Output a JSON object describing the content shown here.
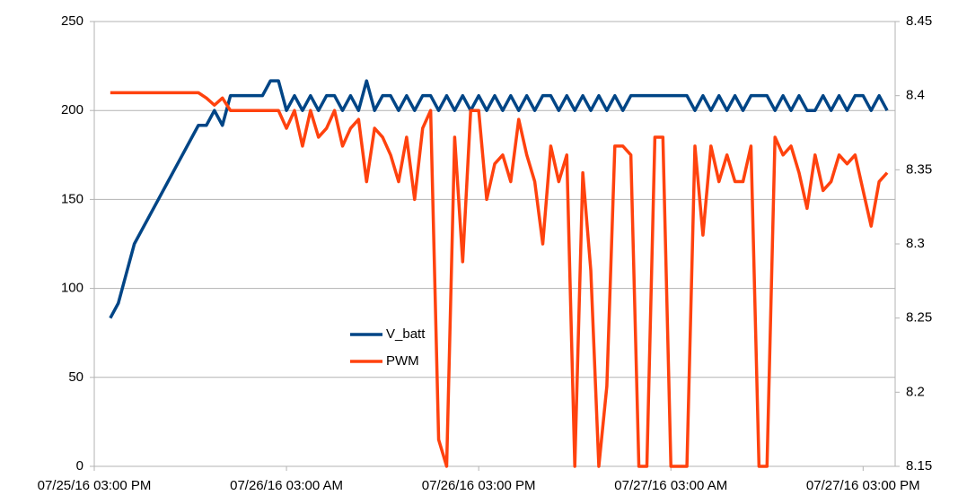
{
  "chart_data": {
    "type": "line",
    "x": [
      "2016-07-25T16:00",
      "2016-07-25T16:30",
      "2016-07-25T17:00",
      "2016-07-25T17:30",
      "2016-07-25T18:00",
      "2016-07-25T18:30",
      "2016-07-25T19:00",
      "2016-07-25T19:30",
      "2016-07-25T20:00",
      "2016-07-25T20:30",
      "2016-07-25T21:00",
      "2016-07-25T21:30",
      "2016-07-25T22:00",
      "2016-07-25T22:30",
      "2016-07-25T23:00",
      "2016-07-25T23:30",
      "2016-07-26T00:00",
      "2016-07-26T00:30",
      "2016-07-26T01:00",
      "2016-07-26T01:30",
      "2016-07-26T02:00",
      "2016-07-26T02:30",
      "2016-07-26T03:00",
      "2016-07-26T03:30",
      "2016-07-26T04:00",
      "2016-07-26T04:30",
      "2016-07-26T05:00",
      "2016-07-26T05:30",
      "2016-07-26T06:00",
      "2016-07-26T06:30",
      "2016-07-26T07:00",
      "2016-07-26T07:30",
      "2016-07-26T08:00",
      "2016-07-26T08:30",
      "2016-07-26T09:00",
      "2016-07-26T09:30",
      "2016-07-26T10:00",
      "2016-07-26T10:30",
      "2016-07-26T11:00",
      "2016-07-26T11:30",
      "2016-07-26T12:00",
      "2016-07-26T12:30",
      "2016-07-26T13:00",
      "2016-07-26T13:30",
      "2016-07-26T14:00",
      "2016-07-26T14:30",
      "2016-07-26T15:00",
      "2016-07-26T15:30",
      "2016-07-26T16:00",
      "2016-07-26T16:30",
      "2016-07-26T17:00",
      "2016-07-26T17:30",
      "2016-07-26T18:00",
      "2016-07-26T18:30",
      "2016-07-26T19:00",
      "2016-07-26T19:30",
      "2016-07-26T20:00",
      "2016-07-26T20:30",
      "2016-07-26T21:00",
      "2016-07-26T21:30",
      "2016-07-26T22:00",
      "2016-07-26T22:30",
      "2016-07-26T23:00",
      "2016-07-26T23:30",
      "2016-07-27T00:00",
      "2016-07-27T00:30",
      "2016-07-27T01:00",
      "2016-07-27T01:30",
      "2016-07-27T02:00",
      "2016-07-27T02:30",
      "2016-07-27T03:00",
      "2016-07-27T03:30",
      "2016-07-27T04:00",
      "2016-07-27T04:30",
      "2016-07-27T05:00",
      "2016-07-27T05:30",
      "2016-07-27T06:00",
      "2016-07-27T06:30",
      "2016-07-27T07:00",
      "2016-07-27T07:30",
      "2016-07-27T08:00",
      "2016-07-27T08:30",
      "2016-07-27T09:00",
      "2016-07-27T09:30",
      "2016-07-27T10:00",
      "2016-07-27T10:30",
      "2016-07-27T11:00",
      "2016-07-27T11:30",
      "2016-07-27T12:00",
      "2016-07-27T12:30",
      "2016-07-27T13:00",
      "2016-07-27T13:30",
      "2016-07-27T14:00",
      "2016-07-27T14:30",
      "2016-07-27T15:00",
      "2016-07-27T15:30",
      "2016-07-27T16:00",
      "2016-07-27T16:30"
    ],
    "series": [
      {
        "name": "V_batt",
        "color": "#004586",
        "axis": "y2",
        "values": [
          8.25,
          8.26,
          8.28,
          8.3,
          8.31,
          8.32,
          8.33,
          8.34,
          8.35,
          8.36,
          8.37,
          8.38,
          8.38,
          8.39,
          8.38,
          8.4,
          8.4,
          8.4,
          8.4,
          8.4,
          8.41,
          8.41,
          8.39,
          8.4,
          8.39,
          8.4,
          8.39,
          8.4,
          8.4,
          8.39,
          8.4,
          8.39,
          8.41,
          8.39,
          8.4,
          8.4,
          8.39,
          8.4,
          8.39,
          8.4,
          8.4,
          8.39,
          8.4,
          8.39,
          8.4,
          8.39,
          8.4,
          8.39,
          8.4,
          8.39,
          8.4,
          8.39,
          8.4,
          8.39,
          8.4,
          8.4,
          8.39,
          8.4,
          8.39,
          8.4,
          8.39,
          8.4,
          8.39,
          8.4,
          8.39,
          8.4,
          8.4,
          8.4,
          8.4,
          8.4,
          8.4,
          8.4,
          8.4,
          8.39,
          8.4,
          8.39,
          8.4,
          8.39,
          8.4,
          8.39,
          8.4,
          8.4,
          8.4,
          8.39,
          8.4,
          8.39,
          8.4,
          8.39,
          8.39,
          8.4,
          8.39,
          8.4,
          8.39,
          8.4,
          8.4,
          8.39,
          8.4,
          8.39
        ]
      },
      {
        "name": "PWM",
        "color": "#ff420e",
        "values": [
          210,
          210,
          210,
          210,
          210,
          210,
          210,
          210,
          210,
          210,
          210,
          210,
          207,
          203,
          207,
          200,
          200,
          200,
          200,
          200,
          200,
          200,
          190,
          200,
          180,
          200,
          185,
          190,
          200,
          180,
          190,
          195,
          160,
          190,
          185,
          175,
          160,
          185,
          150,
          190,
          200,
          15,
          0,
          185,
          115,
          200,
          200,
          150,
          170,
          175,
          160,
          195,
          175,
          160,
          125,
          180,
          160,
          175,
          0,
          165,
          110,
          0,
          45,
          180,
          180,
          175,
          0,
          0,
          185,
          185,
          0,
          0,
          0,
          180,
          130,
          180,
          160,
          175,
          160,
          160,
          180,
          0,
          0,
          185,
          175,
          180,
          165,
          145,
          175,
          155,
          160,
          175,
          170,
          175,
          155,
          135,
          160,
          165
        ]
      }
    ],
    "xlim": [
      "2016-07-25T15:00",
      "2016-07-27T17:00"
    ],
    "xticks": [
      {
        "value": "2016-07-25T15:00",
        "label": "07/25/16 03:00 PM"
      },
      {
        "value": "2016-07-26T03:00",
        "label": "07/26/16 03:00 AM"
      },
      {
        "value": "2016-07-26T15:00",
        "label": "07/26/16 03:00 PM"
      },
      {
        "value": "2016-07-27T03:00",
        "label": "07/27/16 03:00 AM"
      },
      {
        "value": "2016-07-27T15:00",
        "label": "07/27/16 03:00 PM"
      }
    ],
    "ylim": [
      0,
      250
    ],
    "yticks": [
      0,
      50,
      100,
      150,
      200,
      250
    ],
    "y2lim": [
      8.15,
      8.45
    ],
    "y2ticks": [
      8.15,
      8.2,
      8.25,
      8.3,
      8.35,
      8.4,
      8.45
    ],
    "grid": true,
    "legend": "center"
  }
}
